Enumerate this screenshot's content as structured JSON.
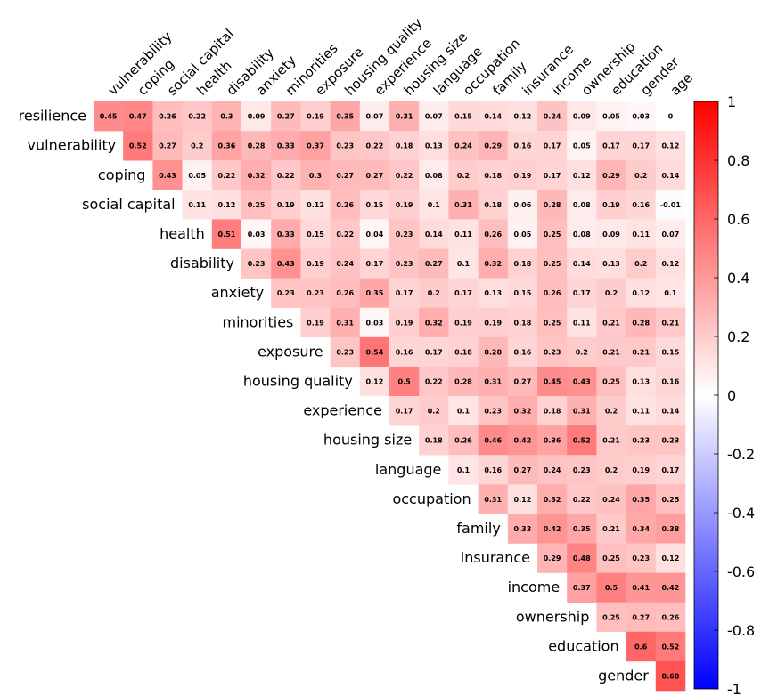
{
  "chart_data": {
    "type": "heatmap",
    "row_labels": [
      "resilience",
      "vulnerability",
      "coping",
      "social capital",
      "health",
      "disability",
      "anxiety",
      "minorities",
      "exposure",
      "housing quality",
      "experience",
      "housing size",
      "language",
      "occupation",
      "family",
      "insurance",
      "income",
      "ownership",
      "education",
      "gender"
    ],
    "col_labels": [
      "vulnerability",
      "coping",
      "social capital",
      "health",
      "disability",
      "anxiety",
      "minorities",
      "exposure",
      "housing quality",
      "experience",
      "housing size",
      "language",
      "occupation",
      "family",
      "insurance",
      "income",
      "ownership",
      "education",
      "gender",
      "age"
    ],
    "values": [
      [
        0.45,
        0.47,
        0.26,
        0.22,
        0.3,
        0.09,
        0.27,
        0.19,
        0.35,
        0.07,
        0.31,
        0.07,
        0.15,
        0.14,
        0.12,
        0.24,
        0.09,
        0.05,
        0.03,
        0
      ],
      [
        0.52,
        0.27,
        0.2,
        0.36,
        0.28,
        0.33,
        0.37,
        0.23,
        0.22,
        0.18,
        0.13,
        0.24,
        0.29,
        0.16,
        0.17,
        0.05,
        0.17,
        0.17,
        0.12
      ],
      [
        0.43,
        0.05,
        0.22,
        0.32,
        0.22,
        0.3,
        0.27,
        0.27,
        0.22,
        0.08,
        0.2,
        0.18,
        0.19,
        0.17,
        0.12,
        0.29,
        0.2,
        0.14
      ],
      [
        0.11,
        0.12,
        0.25,
        0.19,
        0.12,
        0.26,
        0.15,
        0.19,
        0.1,
        0.31,
        0.18,
        0.06,
        0.28,
        0.08,
        0.19,
        0.16,
        -0.01
      ],
      [
        0.51,
        0.03,
        0.33,
        0.15,
        0.22,
        0.04,
        0.23,
        0.14,
        0.11,
        0.26,
        0.05,
        0.25,
        0.08,
        0.09,
        0.11,
        0.07
      ],
      [
        0.23,
        0.43,
        0.19,
        0.24,
        0.17,
        0.23,
        0.27,
        0.1,
        0.32,
        0.18,
        0.25,
        0.14,
        0.13,
        0.2,
        0.12
      ],
      [
        0.23,
        0.23,
        0.26,
        0.35,
        0.17,
        0.2,
        0.17,
        0.13,
        0.15,
        0.26,
        0.17,
        0.2,
        0.12,
        0.1
      ],
      [
        0.19,
        0.31,
        0.03,
        0.19,
        0.32,
        0.19,
        0.19,
        0.18,
        0.25,
        0.11,
        0.21,
        0.28,
        0.21
      ],
      [
        0.23,
        0.54,
        0.16,
        0.17,
        0.18,
        0.28,
        0.16,
        0.23,
        0.2,
        0.21,
        0.21,
        0.15
      ],
      [
        0.12,
        0.5,
        0.22,
        0.28,
        0.31,
        0.27,
        0.45,
        0.43,
        0.25,
        0.13,
        0.16
      ],
      [
        0.17,
        0.2,
        0.1,
        0.23,
        0.32,
        0.18,
        0.31,
        0.2,
        0.11,
        0.14
      ],
      [
        0.18,
        0.26,
        0.46,
        0.42,
        0.36,
        0.52,
        0.21,
        0.23,
        0.23
      ],
      [
        0.1,
        0.16,
        0.27,
        0.24,
        0.23,
        0.2,
        0.19,
        0.17
      ],
      [
        0.31,
        0.12,
        0.32,
        0.22,
        0.24,
        0.35,
        0.25
      ],
      [
        0.33,
        0.42,
        0.35,
        0.21,
        0.34,
        0.38
      ],
      [
        0.29,
        0.48,
        0.25,
        0.23,
        0.12
      ],
      [
        0.37,
        0.5,
        0.41,
        0.42
      ],
      [
        0.25,
        0.27,
        0.26
      ],
      [
        0.6,
        0.52
      ],
      [
        0.68
      ]
    ],
    "color_scale": {
      "min": -1,
      "max": 1,
      "low_color": "#0000ff",
      "mid_color": "#ffffff",
      "high_color": "#ff0000"
    },
    "colorbar_ticks": [
      "1",
      "0.8",
      "0.6",
      "0.4",
      "0.2",
      "0",
      "-0.2",
      "-0.4",
      "-0.6",
      "-0.8",
      "-1"
    ]
  }
}
